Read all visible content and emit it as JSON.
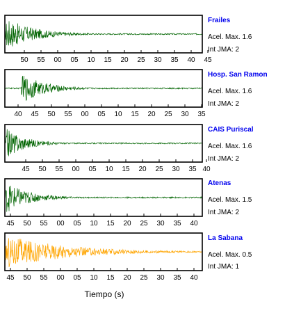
{
  "xlabel": "Tiempo (s)",
  "colors": {
    "accent": "#0000ee",
    "dark_trace": "#006400",
    "light_trace": "#ffa500"
  },
  "chart_data": [
    {
      "type": "line",
      "station": "Frailes",
      "acel_label": "Acel. Max. 1.6",
      "jma_label": "Int JMA: 2",
      "ticks": [
        "50",
        "55",
        "00",
        "05",
        "10",
        "15",
        "20",
        "25",
        "30",
        "35",
        "40",
        "45"
      ],
      "color": "#006400",
      "amplitude": 0.95,
      "onset": 0.0,
      "decay": 0.14
    },
    {
      "type": "line",
      "station": "Hosp. San Ramon",
      "acel_label": "Acel. Max. 1.6",
      "jma_label": "Int JMA: 2",
      "ticks": [
        "40",
        "45",
        "50",
        "55",
        "00",
        "05",
        "10",
        "15",
        "20",
        "25",
        "30",
        "35"
      ],
      "color": "#006400",
      "amplitude": 0.85,
      "onset": 0.08,
      "decay": 0.12
    },
    {
      "type": "line",
      "station": "CAIS Puriscal",
      "acel_label": "Acel. Max. 1.6",
      "jma_label": "Int JMA: 2",
      "ticks": [
        "45",
        "50",
        "55",
        "00",
        "05",
        "10",
        "15",
        "20",
        "25",
        "30",
        "35",
        "40"
      ],
      "color": "#006400",
      "amplitude": 0.9,
      "onset": 0.0,
      "decay": 0.1
    },
    {
      "type": "line",
      "station": "Atenas",
      "acel_label": "Acel. Max. 1.5",
      "jma_label": "Int JMA: 2",
      "ticks": [
        "45",
        "50",
        "55",
        "00",
        "05",
        "10",
        "15",
        "20",
        "25",
        "30",
        "35",
        "40"
      ],
      "color": "#006400",
      "amplitude": 0.9,
      "onset": 0.0,
      "decay": 0.12
    },
    {
      "type": "line",
      "station": "La Sabana",
      "acel_label": "Acel. Max. 0.5",
      "jma_label": "Int JMA: 1",
      "ticks": [
        "45",
        "50",
        "55",
        "00",
        "05",
        "10",
        "15",
        "20",
        "25",
        "30",
        "35",
        "40"
      ],
      "color": "#ffa500",
      "amplitude": 0.95,
      "onset": 0.0,
      "decay": 0.3
    }
  ]
}
